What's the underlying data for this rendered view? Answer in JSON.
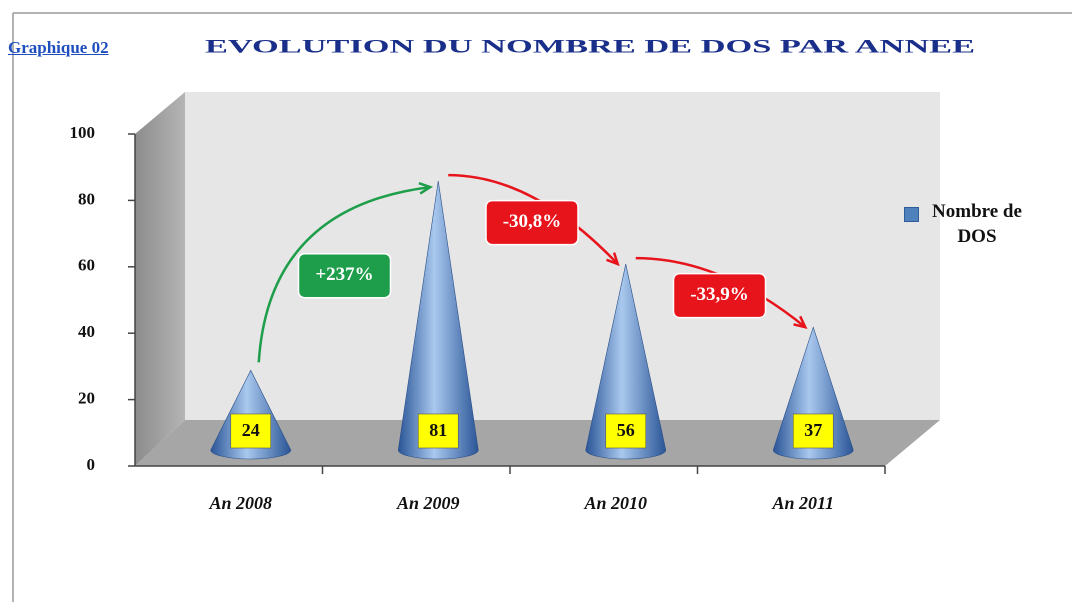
{
  "chart_data": {
    "type": "cone",
    "subtitle": "Graphique 02",
    "title": "EVOLUTION DU NOMBRE DE DOS PAR ANNEE",
    "categories": [
      "An 2008",
      "An 2009",
      "An 2010",
      "An 2011"
    ],
    "series": [
      {
        "name": "Nombre de DOS",
        "color": "#4f81bd",
        "values": [
          24,
          81,
          56,
          37
        ]
      }
    ],
    "ylim": [
      0,
      100
    ],
    "yticks": [
      0,
      20,
      40,
      60,
      80,
      100
    ],
    "legend": "right",
    "annotations": [
      {
        "text": "+237%",
        "color": "#1e9e4a"
      },
      {
        "text": "-30,8%",
        "color": "#e8141c"
      },
      {
        "text": "-33,9%",
        "color": "#e8141c"
      }
    ]
  }
}
